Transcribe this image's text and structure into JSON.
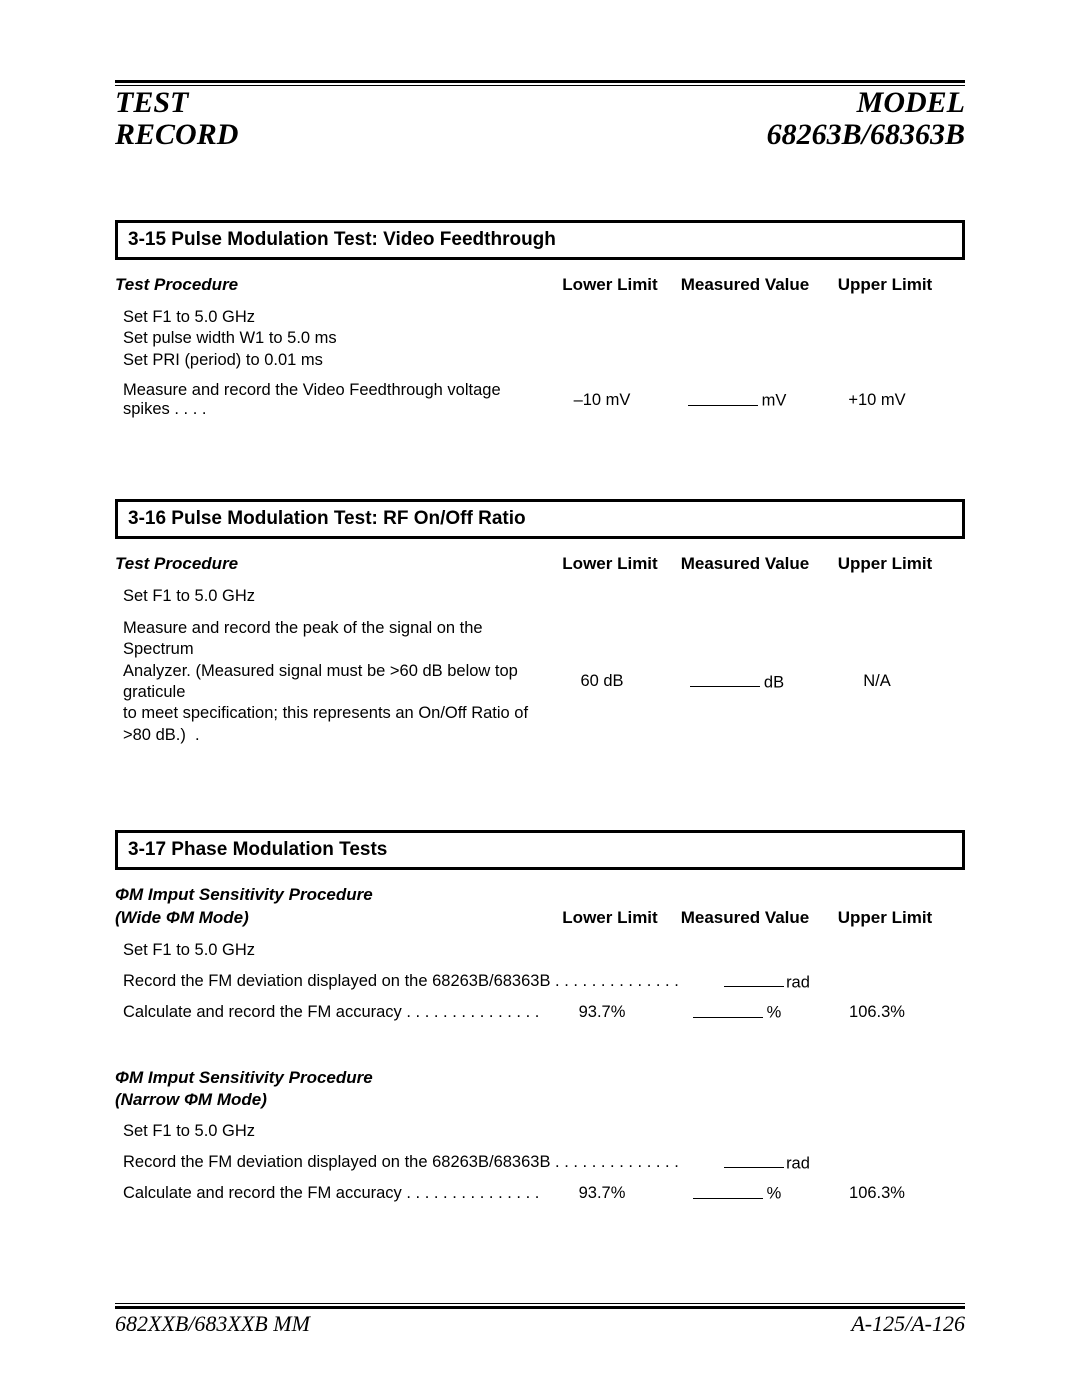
{
  "header": {
    "left1": "TEST",
    "left2": "RECORD",
    "right1": "MODEL",
    "right2": "68263B/68363B"
  },
  "cols": {
    "ll": "Lower Limit",
    "mv": "Measured Value",
    "ul": "Upper Limit"
  },
  "sec315": {
    "title": "3-15 Pulse Modulation Test: Video Feedthrough",
    "proc": "Test Procedure",
    "step1": "Set F1 to 5.0 GHz",
    "step2": "Set pulse width W1 to 5.0 ms",
    "step3": "Set PRI (period) to 0.01 ms",
    "measure": "Measure and record the Video Feedthrough voltage spikes",
    "ll": "–10 mV",
    "unit": "mV",
    "ul": "+10 mV"
  },
  "sec316": {
    "title": "3-16 Pulse Modulation Test: RF On/Off Ratio",
    "proc": "Test Procedure",
    "step1": "Set F1 to 5.0 GHz",
    "measure1": "Measure and record the peak of the signal on the Spectrum",
    "measure2": "Analyzer. (Measured signal must be >60 dB below top graticule",
    "measure3": "to meet specification; this represents an On/Off Ratio of >80 dB.)",
    "ll": "60 dB",
    "unit": "dB",
    "ul": "N/A"
  },
  "sec317": {
    "title": "3-17 Phase Modulation Tests",
    "wide_head1": "ΦM Imput Sensitivity Procedure",
    "wide_head2": "(Wide ΦM Mode)",
    "narrow_head1": "ΦM Imput Sensitivity Procedure",
    "narrow_head2": "(Narrow ΦM Mode)",
    "step1": "Set F1 to 5.0 GHz",
    "rec": "Record the FM deviation displayed on the 68263B/68363B",
    "rec_unit": "rad",
    "calc": "Calculate and record the FM accuracy",
    "ll": "93.7%",
    "unit": "%",
    "ul": "106.3%"
  },
  "footer": {
    "left": "682XXB/683XXB MM",
    "right": "A-125/A-126"
  }
}
